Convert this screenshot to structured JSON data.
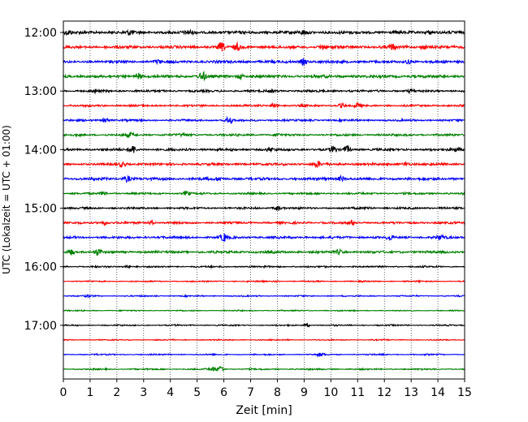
{
  "chart_data": {
    "type": "line",
    "title": "",
    "xlabel": "Zeit  [min]",
    "ylabel": "UTC (Lokalzeit = UTC + 01:00)",
    "xlim": [
      0,
      15
    ],
    "x_ticks": [
      "0",
      "1",
      "2",
      "3",
      "4",
      "5",
      "6",
      "7",
      "8",
      "9",
      "10",
      "11",
      "12",
      "13",
      "14",
      "15"
    ],
    "y_ticks": [
      {
        "label": "12:00",
        "trace": 0
      },
      {
        "label": "13:00",
        "trace": 4
      },
      {
        "label": "14:00",
        "trace": 8
      },
      {
        "label": "15:00",
        "trace": 12
      },
      {
        "label": "16:00",
        "trace": 16
      },
      {
        "label": "17:00",
        "trace": 20
      }
    ],
    "grid": {
      "x": true,
      "style": "dotted"
    },
    "trace_interval_minutes": 15,
    "trace_colors": [
      "#000000",
      "#ff0000",
      "#0000ff",
      "#008000"
    ],
    "series": [
      {
        "start": "12:00",
        "amplitude": 0.32,
        "events": [
          [
            0.2,
            0.5
          ],
          [
            2.5,
            0.6
          ],
          [
            4.7,
            0.5
          ],
          [
            9.0,
            0.5
          ],
          [
            13.7,
            0.4
          ]
        ]
      },
      {
        "start": "12:15",
        "amplitude": 0.3,
        "events": [
          [
            5.9,
            1.0
          ],
          [
            6.5,
            0.8
          ],
          [
            9.7,
            0.6
          ],
          [
            12.3,
            0.6
          ],
          [
            13.5,
            0.5
          ]
        ]
      },
      {
        "start": "12:30",
        "amplitude": 0.28,
        "events": [
          [
            3.5,
            0.4
          ],
          [
            9.0,
            0.8
          ],
          [
            12.9,
            0.5
          ]
        ]
      },
      {
        "start": "12:45",
        "amplitude": 0.3,
        "events": [
          [
            2.8,
            0.7
          ],
          [
            5.2,
            1.1
          ],
          [
            6.6,
            0.5
          ]
        ]
      },
      {
        "start": "13:00",
        "amplitude": 0.22,
        "events": [
          [
            1.2,
            0.3
          ],
          [
            7.8,
            0.3
          ],
          [
            13.0,
            0.4
          ]
        ]
      },
      {
        "start": "13:15",
        "amplitude": 0.2,
        "events": [
          [
            7.9,
            0.8
          ],
          [
            10.4,
            0.5
          ],
          [
            11.0,
            0.6
          ]
        ]
      },
      {
        "start": "13:30",
        "amplitude": 0.2,
        "events": [
          [
            1.6,
            0.6
          ],
          [
            6.2,
            1.0
          ]
        ]
      },
      {
        "start": "13:45",
        "amplitude": 0.22,
        "events": [
          [
            2.5,
            0.5
          ],
          [
            4.5,
            0.3
          ],
          [
            8.0,
            0.3
          ]
        ]
      },
      {
        "start": "14:00",
        "amplitude": 0.25,
        "events": [
          [
            2.6,
            1.0
          ],
          [
            7.7,
            0.5
          ],
          [
            10.1,
            0.8
          ],
          [
            10.6,
            0.9
          ],
          [
            14.7,
            0.6
          ]
        ]
      },
      {
        "start": "14:15",
        "amplitude": 0.25,
        "events": [
          [
            2.2,
            0.6
          ],
          [
            9.5,
            0.7
          ],
          [
            12.8,
            0.5
          ]
        ]
      },
      {
        "start": "14:30",
        "amplitude": 0.28,
        "events": [
          [
            2.4,
            0.7
          ],
          [
            5.8,
            0.4
          ],
          [
            10.4,
            0.6
          ]
        ]
      },
      {
        "start": "14:45",
        "amplitude": 0.2,
        "events": [
          [
            1.5,
            0.4
          ],
          [
            4.6,
            0.5
          ]
        ]
      },
      {
        "start": "15:00",
        "amplitude": 0.2,
        "events": [
          [
            8.0,
            0.6
          ],
          [
            11.4,
            0.3
          ],
          [
            14.2,
            0.3
          ]
        ]
      },
      {
        "start": "15:15",
        "amplitude": 0.22,
        "events": [
          [
            1.5,
            0.6
          ],
          [
            3.3,
            0.5
          ],
          [
            10.8,
            0.5
          ]
        ]
      },
      {
        "start": "15:30",
        "amplitude": 0.24,
        "events": [
          [
            6.0,
            1.0
          ],
          [
            12.2,
            0.5
          ],
          [
            14.1,
            0.6
          ]
        ]
      },
      {
        "start": "15:45",
        "amplitude": 0.25,
        "events": [
          [
            0.3,
            0.6
          ],
          [
            1.3,
            0.8
          ],
          [
            10.3,
            0.5
          ]
        ]
      },
      {
        "start": "16:00",
        "amplitude": 0.16,
        "events": [
          [
            2.4,
            0.4
          ]
        ]
      },
      {
        "start": "16:15",
        "amplitude": 0.12,
        "events": [
          [
            8.0,
            0.2
          ]
        ]
      },
      {
        "start": "16:30",
        "amplitude": 0.12,
        "events": [
          [
            1.0,
            0.3
          ]
        ]
      },
      {
        "start": "16:45",
        "amplitude": 0.1,
        "events": []
      },
      {
        "start": "17:00",
        "amplitude": 0.12,
        "events": [
          [
            9.1,
            0.4
          ]
        ]
      },
      {
        "start": "17:15",
        "amplitude": 0.1,
        "events": []
      },
      {
        "start": "17:30",
        "amplitude": 0.12,
        "events": [
          [
            9.6,
            0.4
          ]
        ]
      },
      {
        "start": "17:45",
        "amplitude": 0.14,
        "events": [
          [
            5.6,
            0.5
          ],
          [
            5.9,
            0.8
          ]
        ]
      }
    ]
  }
}
